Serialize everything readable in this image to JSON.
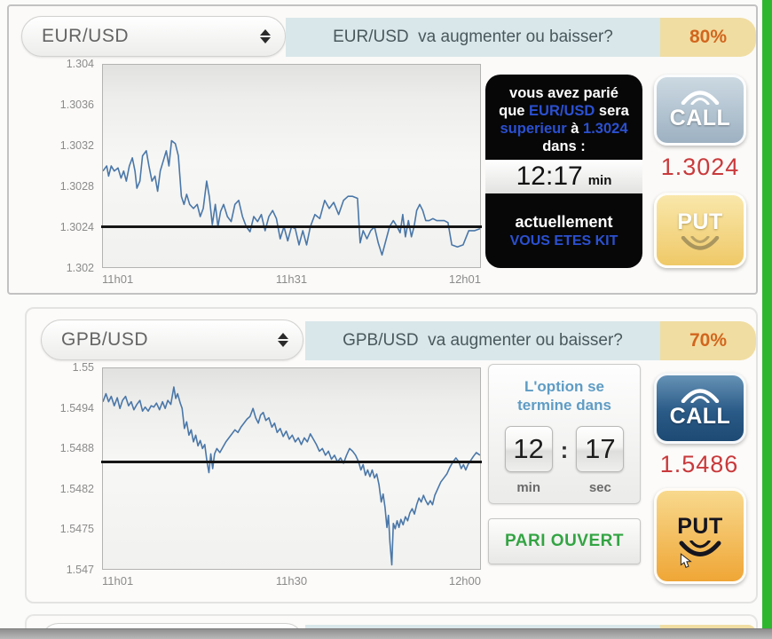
{
  "panels": [
    {
      "pair": "EUR/USD",
      "question": "EUR/USD  va augmenter ou baisser?",
      "payout": "80%",
      "bet": {
        "l1": "vous avez parié",
        "l2a": "que ",
        "l2b": "EUR/USD",
        "l2c": " sera",
        "l3a": "superieur",
        "l3b": " à ",
        "l3c": "1.3024",
        "l4": "dans :",
        "time": "12:17",
        "time_unit": "min",
        "cur": "actuellement",
        "status": "VOUS ETES KIT"
      },
      "call_label": "CALL",
      "price": "1.3024",
      "put_label": "PUT"
    },
    {
      "pair": "GPB/USD",
      "question": "GPB/USD  va augmenter ou baisser?",
      "payout": "70%",
      "timer": {
        "t1": "L'option se",
        "t2": "termine dans",
        "min": "12",
        "colon": ":",
        "sec": "17",
        "min_label": "min",
        "sec_label": "sec"
      },
      "open_bet": "PARI OUVERT",
      "call_label": "CALL",
      "price": "1.5486",
      "put_label": "PUT"
    }
  ],
  "colors": {
    "payout_text": "#d2661e",
    "price_text": "#c93a3c",
    "bet_blue": "#2b50d0",
    "open_bet_green": "#33a443",
    "header_strip": "#d9e7ea",
    "payout_badge": "#f0dda2"
  },
  "chart_data": [
    {
      "type": "line",
      "title": "EUR/USD",
      "x_ticks": [
        "11h01",
        "11h31",
        "12h01"
      ],
      "y_ticks": [
        "1.304",
        "1.3036",
        "1.3032",
        "1.3028",
        "1.3024",
        "1.302"
      ],
      "ylim": [
        1.302,
        1.304
      ],
      "strike": 1.3024,
      "line_color": "#4a77a8",
      "strike_color": "#161616",
      "legend": "none",
      "grid": false,
      "points": [
        [
          0.0,
          1.30295
        ],
        [
          0.01,
          1.303
        ],
        [
          0.015,
          1.3029
        ],
        [
          0.022,
          1.303
        ],
        [
          0.03,
          1.30295
        ],
        [
          0.04,
          1.30298
        ],
        [
          0.048,
          1.30288
        ],
        [
          0.055,
          1.30295
        ],
        [
          0.062,
          1.30285
        ],
        [
          0.07,
          1.303
        ],
        [
          0.078,
          1.30308
        ],
        [
          0.085,
          1.30295
        ],
        [
          0.09,
          1.30278
        ],
        [
          0.098,
          1.30285
        ],
        [
          0.105,
          1.3031
        ],
        [
          0.115,
          1.30315
        ],
        [
          0.122,
          1.303
        ],
        [
          0.13,
          1.30285
        ],
        [
          0.138,
          1.3029
        ],
        [
          0.145,
          1.30275
        ],
        [
          0.152,
          1.30295
        ],
        [
          0.16,
          1.30305
        ],
        [
          0.168,
          1.30315
        ],
        [
          0.175,
          1.303
        ],
        [
          0.182,
          1.30325
        ],
        [
          0.192,
          1.30322
        ],
        [
          0.2,
          1.3031
        ],
        [
          0.208,
          1.3027
        ],
        [
          0.215,
          1.30262
        ],
        [
          0.222,
          1.30272
        ],
        [
          0.23,
          1.30262
        ],
        [
          0.24,
          1.30258
        ],
        [
          0.25,
          1.30262
        ],
        [
          0.258,
          1.3025
        ],
        [
          0.266,
          1.30258
        ],
        [
          0.275,
          1.30285
        ],
        [
          0.282,
          1.3027
        ],
        [
          0.29,
          1.30242
        ],
        [
          0.298,
          1.30262
        ],
        [
          0.305,
          1.3024
        ],
        [
          0.312,
          1.30255
        ],
        [
          0.32,
          1.30262
        ],
        [
          0.33,
          1.3025
        ],
        [
          0.34,
          1.30245
        ],
        [
          0.35,
          1.30262
        ],
        [
          0.36,
          1.30266
        ],
        [
          0.37,
          1.3025
        ],
        [
          0.38,
          1.3024
        ],
        [
          0.39,
          1.30235
        ],
        [
          0.4,
          1.3025
        ],
        [
          0.41,
          1.30245
        ],
        [
          0.42,
          1.30252
        ],
        [
          0.43,
          1.30236
        ],
        [
          0.44,
          1.3025
        ],
        [
          0.45,
          1.30256
        ],
        [
          0.46,
          1.30248
        ],
        [
          0.47,
          1.30228
        ],
        [
          0.48,
          1.3024
        ],
        [
          0.49,
          1.30226
        ],
        [
          0.5,
          1.3024
        ],
        [
          0.51,
          1.30238
        ],
        [
          0.52,
          1.30222
        ],
        [
          0.53,
          1.30236
        ],
        [
          0.54,
          1.30222
        ],
        [
          0.55,
          1.3024
        ],
        [
          0.562,
          1.30252
        ],
        [
          0.575,
          1.30248
        ],
        [
          0.588,
          1.30266
        ],
        [
          0.6,
          1.30258
        ],
        [
          0.612,
          1.30264
        ],
        [
          0.625,
          1.30252
        ],
        [
          0.638,
          1.30266
        ],
        [
          0.65,
          1.3027
        ],
        [
          0.662,
          1.3027
        ],
        [
          0.675,
          1.30268
        ],
        [
          0.682,
          1.30224
        ],
        [
          0.69,
          1.30236
        ],
        [
          0.7,
          1.30228
        ],
        [
          0.71,
          1.30236
        ],
        [
          0.72,
          1.3024
        ],
        [
          0.73,
          1.30224
        ],
        [
          0.74,
          1.30212
        ],
        [
          0.75,
          1.30226
        ],
        [
          0.76,
          1.3024
        ],
        [
          0.77,
          1.30246
        ],
        [
          0.78,
          1.3024
        ],
        [
          0.788,
          1.30234
        ],
        [
          0.795,
          1.30252
        ],
        [
          0.802,
          1.3023
        ],
        [
          0.81,
          1.30246
        ],
        [
          0.818,
          1.3023
        ],
        [
          0.825,
          1.3024
        ],
        [
          0.832,
          1.30256
        ],
        [
          0.84,
          1.30262
        ],
        [
          0.848,
          1.30256
        ],
        [
          0.856,
          1.30246
        ],
        [
          0.865,
          1.30246
        ],
        [
          0.875,
          1.30248
        ],
        [
          0.885,
          1.30246
        ],
        [
          0.895,
          1.30246
        ],
        [
          0.905,
          1.30246
        ],
        [
          0.915,
          1.30244
        ],
        [
          0.925,
          1.30222
        ],
        [
          0.94,
          1.3022
        ],
        [
          0.955,
          1.30222
        ],
        [
          0.97,
          1.30236
        ],
        [
          0.985,
          1.30236
        ],
        [
          1.0,
          1.30238
        ]
      ]
    },
    {
      "type": "line",
      "title": "GPB/USD",
      "x_ticks": [
        "11h01",
        "11h30",
        "12h00"
      ],
      "y_ticks": [
        "1.55",
        "1.5494",
        "1.5488",
        "1.5482",
        "1.5475",
        "1.547"
      ],
      "ylim": [
        1.547,
        1.55
      ],
      "strike": 1.5486,
      "line_color": "#4a77a8",
      "strike_color": "#161616",
      "legend": "none",
      "grid": false,
      "points": [
        [
          0.0,
          1.5495
        ],
        [
          0.008,
          1.54962
        ],
        [
          0.015,
          1.5495
        ],
        [
          0.022,
          1.54958
        ],
        [
          0.03,
          1.54944
        ],
        [
          0.038,
          1.54956
        ],
        [
          0.045,
          1.5494
        ],
        [
          0.052,
          1.54952
        ],
        [
          0.06,
          1.54958
        ],
        [
          0.068,
          1.54944
        ],
        [
          0.075,
          1.5495
        ],
        [
          0.082,
          1.54938
        ],
        [
          0.09,
          1.54946
        ],
        [
          0.098,
          1.54952
        ],
        [
          0.105,
          1.54936
        ],
        [
          0.112,
          1.54942
        ],
        [
          0.12,
          1.54936
        ],
        [
          0.128,
          1.54944
        ],
        [
          0.135,
          1.54942
        ],
        [
          0.142,
          1.54948
        ],
        [
          0.15,
          1.54938
        ],
        [
          0.158,
          1.5495
        ],
        [
          0.165,
          1.5494
        ],
        [
          0.172,
          1.54952
        ],
        [
          0.18,
          1.54946
        ],
        [
          0.188,
          1.54972
        ],
        [
          0.193,
          1.54955
        ],
        [
          0.198,
          1.54962
        ],
        [
          0.205,
          1.54948
        ],
        [
          0.21,
          1.5494
        ],
        [
          0.216,
          1.5491
        ],
        [
          0.222,
          1.5492
        ],
        [
          0.228,
          1.549
        ],
        [
          0.234,
          1.54908
        ],
        [
          0.24,
          1.5489
        ],
        [
          0.246,
          1.549
        ],
        [
          0.252,
          1.54884
        ],
        [
          0.258,
          1.54892
        ],
        [
          0.264,
          1.5488
        ],
        [
          0.27,
          1.54886
        ],
        [
          0.276,
          1.5486
        ],
        [
          0.281,
          1.54844
        ],
        [
          0.286,
          1.54872
        ],
        [
          0.291,
          1.5485
        ],
        [
          0.296,
          1.54872
        ],
        [
          0.302,
          1.5488
        ],
        [
          0.31,
          1.54874
        ],
        [
          0.318,
          1.54882
        ],
        [
          0.326,
          1.5489
        ],
        [
          0.334,
          1.54896
        ],
        [
          0.342,
          1.54902
        ],
        [
          0.35,
          1.54908
        ],
        [
          0.358,
          1.54904
        ],
        [
          0.366,
          1.54912
        ],
        [
          0.374,
          1.54918
        ],
        [
          0.382,
          1.54924
        ],
        [
          0.39,
          1.54928
        ],
        [
          0.398,
          1.5494
        ],
        [
          0.405,
          1.54926
        ],
        [
          0.412,
          1.54918
        ],
        [
          0.418,
          1.5493
        ],
        [
          0.425,
          1.54934
        ],
        [
          0.432,
          1.54922
        ],
        [
          0.44,
          1.54926
        ],
        [
          0.448,
          1.54912
        ],
        [
          0.455,
          1.54918
        ],
        [
          0.462,
          1.54904
        ],
        [
          0.47,
          1.5491
        ],
        [
          0.478,
          1.54898
        ],
        [
          0.486,
          1.54906
        ],
        [
          0.494,
          1.54894
        ],
        [
          0.502,
          1.549
        ],
        [
          0.51,
          1.5489
        ],
        [
          0.518,
          1.54896
        ],
        [
          0.526,
          1.54886
        ],
        [
          0.534,
          1.54896
        ],
        [
          0.542,
          1.5489
        ],
        [
          0.55,
          1.54902
        ],
        [
          0.558,
          1.54894
        ],
        [
          0.566,
          1.54886
        ],
        [
          0.574,
          1.54876
        ],
        [
          0.582,
          1.5488
        ],
        [
          0.59,
          1.5487
        ],
        [
          0.598,
          1.54876
        ],
        [
          0.606,
          1.54864
        ],
        [
          0.614,
          1.5487
        ],
        [
          0.622,
          1.5486
        ],
        [
          0.63,
          1.54866
        ],
        [
          0.638,
          1.54858
        ],
        [
          0.646,
          1.5487
        ],
        [
          0.654,
          1.5488
        ],
        [
          0.662,
          1.54876
        ],
        [
          0.67,
          1.5487
        ],
        [
          0.678,
          1.5486
        ],
        [
          0.684,
          1.54848
        ],
        [
          0.69,
          1.54856
        ],
        [
          0.696,
          1.5484
        ],
        [
          0.702,
          1.54848
        ],
        [
          0.708,
          1.54838
        ],
        [
          0.714,
          1.54848
        ],
        [
          0.72,
          1.54836
        ],
        [
          0.726,
          1.54842
        ],
        [
          0.732,
          1.54826
        ],
        [
          0.738,
          1.548
        ],
        [
          0.743,
          1.54812
        ],
        [
          0.748,
          1.54792
        ],
        [
          0.753,
          1.54762
        ],
        [
          0.757,
          1.5478
        ],
        [
          0.761,
          1.5474
        ],
        [
          0.766,
          1.54706
        ],
        [
          0.77,
          1.54768
        ],
        [
          0.775,
          1.5476
        ],
        [
          0.78,
          1.54772
        ],
        [
          0.785,
          1.54762
        ],
        [
          0.79,
          1.54774
        ],
        [
          0.796,
          1.54766
        ],
        [
          0.802,
          1.54778
        ],
        [
          0.808,
          1.54772
        ],
        [
          0.814,
          1.54784
        ],
        [
          0.82,
          1.5479
        ],
        [
          0.826,
          1.54782
        ],
        [
          0.832,
          1.54796
        ],
        [
          0.838,
          1.54806
        ],
        [
          0.844,
          1.548
        ],
        [
          0.85,
          1.5481
        ],
        [
          0.856,
          1.54802
        ],
        [
          0.862,
          1.54796
        ],
        [
          0.868,
          1.54802
        ],
        [
          0.874,
          1.54796
        ],
        [
          0.88,
          1.5481
        ],
        [
          0.888,
          1.5482
        ],
        [
          0.896,
          1.5483
        ],
        [
          0.904,
          1.54836
        ],
        [
          0.912,
          1.54842
        ],
        [
          0.92,
          1.54852
        ],
        [
          0.928,
          1.5486
        ],
        [
          0.936,
          1.54866
        ],
        [
          0.944,
          1.5486
        ],
        [
          0.95,
          1.5485
        ],
        [
          0.956,
          1.54856
        ],
        [
          0.962,
          1.54848
        ],
        [
          0.968,
          1.54856
        ],
        [
          0.975,
          1.54862
        ],
        [
          0.982,
          1.54868
        ],
        [
          0.99,
          1.54874
        ],
        [
          1.0,
          1.5487
        ]
      ]
    }
  ]
}
